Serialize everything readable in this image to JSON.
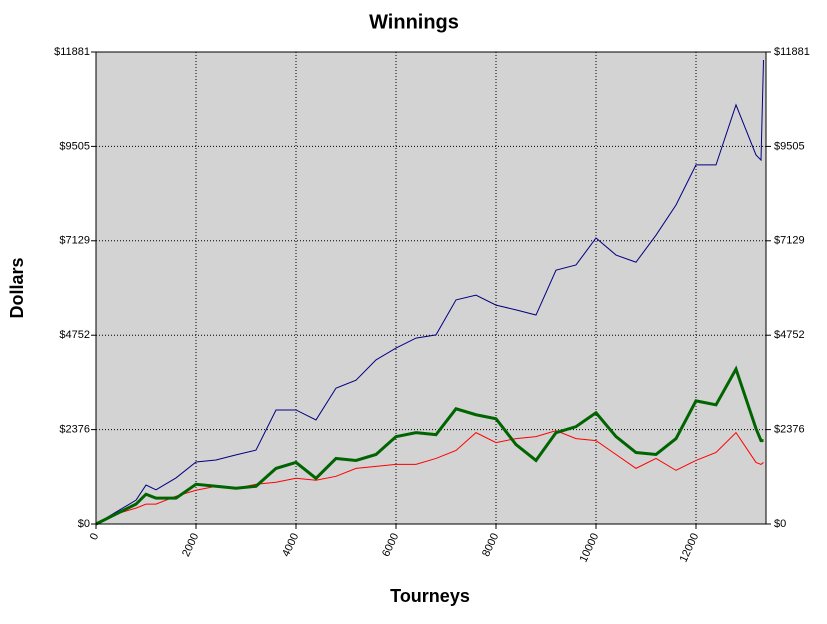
{
  "chart_data": {
    "type": "line",
    "title": "Winnings",
    "xlabel": "Tourneys",
    "ylabel": "Dollars",
    "x": [
      0,
      400,
      800,
      1000,
      1200,
      1600,
      2000,
      2400,
      2800,
      3200,
      3600,
      4000,
      4400,
      4800,
      5200,
      5600,
      6000,
      6400,
      6800,
      7200,
      7600,
      8000,
      8400,
      8800,
      9200,
      9600,
      10000,
      10400,
      10800,
      11200,
      11600,
      12000,
      12400,
      12800,
      13200,
      13300,
      13350
    ],
    "series": [
      {
        "color": "#000080",
        "values": [
          0,
          300,
          600,
          980,
          860,
          1160,
          1560,
          1610,
          1740,
          1860,
          2870,
          2870,
          2620,
          3420,
          3620,
          4130,
          4430,
          4680,
          4760,
          5640,
          5760,
          5510,
          5390,
          5260,
          6390,
          6520,
          7200,
          6770,
          6590,
          7270,
          8030,
          9040,
          9040,
          10550,
          9290,
          9160,
          11680
        ]
      },
      {
        "color": "#ff0000",
        "values": [
          0,
          250,
          400,
          500,
          500,
          700,
          850,
          950,
          900,
          1000,
          1050,
          1150,
          1100,
          1200,
          1400,
          1450,
          1500,
          1500,
          1650,
          1850,
          2300,
          2050,
          2150,
          2200,
          2350,
          2150,
          2100,
          1750,
          1400,
          1650,
          1350,
          1600,
          1800,
          2300,
          1550,
          1500,
          1550
        ]
      },
      {
        "color": "#006400",
        "values": [
          0,
          250,
          500,
          750,
          650,
          650,
          1000,
          950,
          900,
          950,
          1400,
          1550,
          1150,
          1650,
          1600,
          1750,
          2200,
          2300,
          2250,
          2900,
          2750,
          2650,
          2000,
          1600,
          2300,
          2450,
          2800,
          2200,
          1800,
          1750,
          2150,
          3100,
          3000,
          3900,
          2400,
          2100,
          2100
        ]
      }
    ],
    "xlim": [
      0,
      13400
    ],
    "xticks": [
      0,
      2000,
      4000,
      6000,
      8000,
      10000,
      12000
    ],
    "ylim": [
      0,
      11881
    ],
    "yticks": [
      {
        "value": 0,
        "label": "$0"
      },
      {
        "value": 2376,
        "label": "$2376"
      },
      {
        "value": 4752,
        "label": "$4752"
      },
      {
        "value": 7129,
        "label": "$7129"
      },
      {
        "value": 9505,
        "label": "$9505"
      },
      {
        "value": 11881,
        "label": "$11881"
      }
    ],
    "grid": true,
    "background": "#d3d3d3"
  }
}
